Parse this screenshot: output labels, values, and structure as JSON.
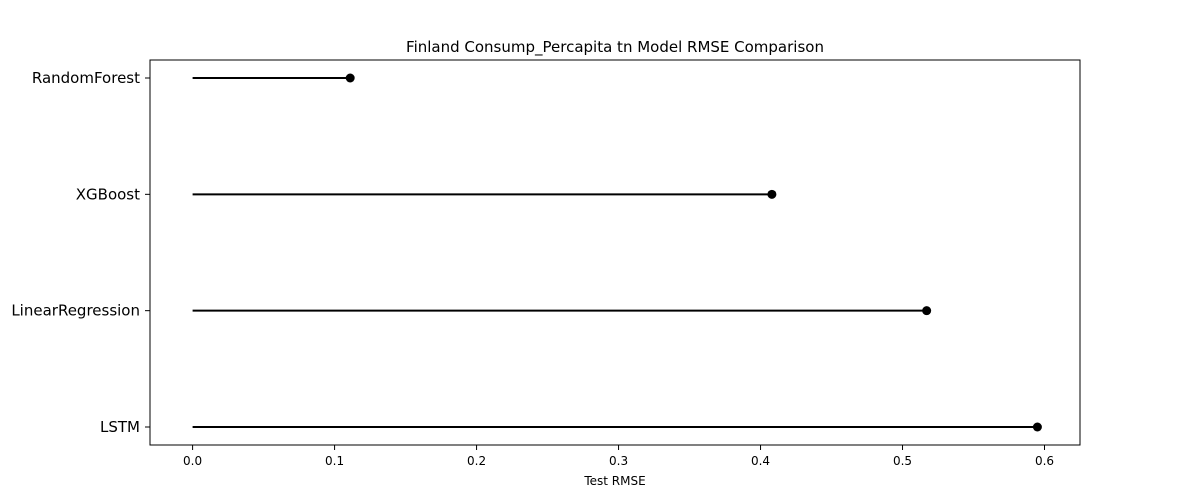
{
  "chart_data": {
    "type": "lollipop",
    "orientation": "horizontal",
    "title": "Finland Consump_Percapita tn Model RMSE Comparison",
    "xlabel": "Test RMSE",
    "ylabel": "",
    "categories": [
      "RandomForest",
      "XGBoost",
      "LinearRegression",
      "LSTM"
    ],
    "values": [
      0.111,
      0.408,
      0.517,
      0.595
    ],
    "xlim": [
      -0.03,
      0.625
    ],
    "xticks": [
      "0.0",
      "0.1",
      "0.2",
      "0.3",
      "0.4",
      "0.5",
      "0.6"
    ],
    "grid": false,
    "legend": "none",
    "colors": {
      "stem": "#000000",
      "marker": "#000000",
      "axes": "#000000"
    }
  }
}
